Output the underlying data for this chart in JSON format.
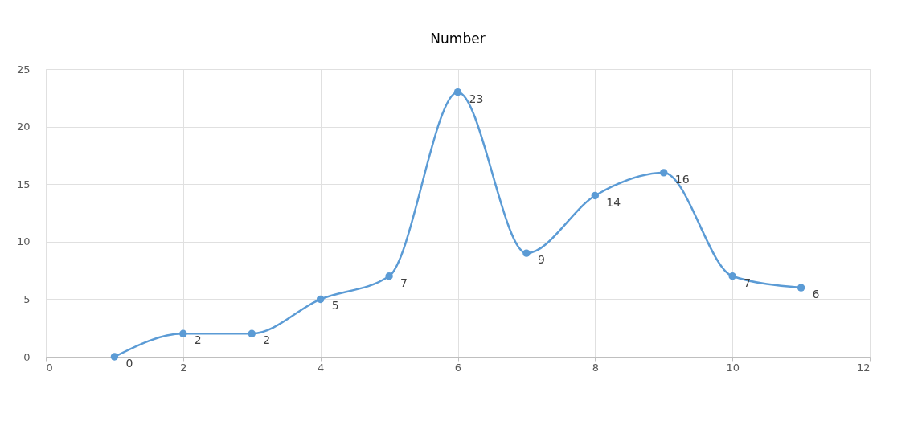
{
  "chart_data": {
    "type": "line",
    "title": "Number",
    "x": [
      1,
      2,
      3,
      4,
      5,
      6,
      7,
      8,
      9,
      10,
      11
    ],
    "series": [
      {
        "color": "#5b9bd5",
        "values": [
          0,
          2,
          2,
          5,
          7,
          23,
          9,
          14,
          16,
          7,
          6
        ]
      }
    ],
    "xlim": [
      0,
      12
    ],
    "xticks": [
      0,
      2,
      4,
      6,
      8,
      10,
      12
    ],
    "ylim": [
      0,
      25
    ],
    "yticks": [
      0,
      5,
      10,
      15,
      20,
      25
    ],
    "grid": true,
    "marker": "circle",
    "line_style": "solid",
    "data_labels": true
  }
}
